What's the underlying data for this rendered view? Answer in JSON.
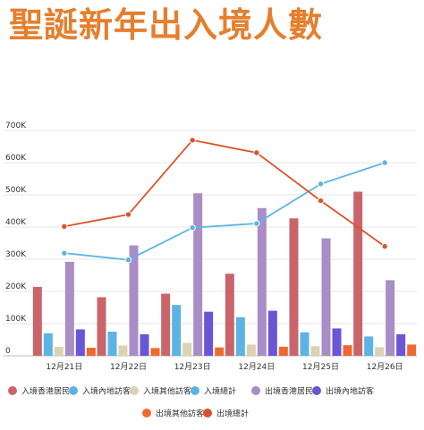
{
  "chart_data": {
    "type": "bar",
    "title": "聖誕新年出入境人數",
    "title_color": "#e57f2e",
    "categories": [
      "12月21日",
      "12月22日",
      "12月23日",
      "12月24日",
      "12月25日",
      "12月26日"
    ],
    "ylim": [
      0,
      700000
    ],
    "yticks": [
      {
        "value": 0,
        "label": "0"
      },
      {
        "value": 100000,
        "label": "100K"
      },
      {
        "value": 200000,
        "label": "200K"
      },
      {
        "value": 300000,
        "label": "300K"
      },
      {
        "value": 400000,
        "label": "400K"
      },
      {
        "value": 500000,
        "label": "500K"
      },
      {
        "value": 600000,
        "label": "600K"
      },
      {
        "value": 700000,
        "label": "700K"
      }
    ],
    "grid": true,
    "legend_position": "bottom",
    "series": [
      {
        "name": "入境香港居民",
        "kind": "bar",
        "color": "#c9656a",
        "values": [
          214000,
          182000,
          193000,
          255000,
          427000,
          510000
        ]
      },
      {
        "name": "入境內地訪客",
        "kind": "bar",
        "color": "#5bb4e5",
        "values": [
          70000,
          75000,
          158000,
          120000,
          73000,
          60000
        ]
      },
      {
        "name": "入境其他訪客",
        "kind": "bar",
        "color": "#d9d3b4",
        "values": [
          28000,
          32000,
          40000,
          35000,
          30000,
          27000
        ]
      },
      {
        "name": "入境總計",
        "kind": "line",
        "color": "#5bb4e5",
        "values": [
          319000,
          298000,
          398000,
          411000,
          534000,
          600000
        ]
      },
      {
        "name": "出境香港居民",
        "kind": "bar",
        "color": "#a98dc7",
        "values": [
          292000,
          343000,
          505000,
          459000,
          365000,
          235000
        ]
      },
      {
        "name": "出境內地訪客",
        "kind": "bar",
        "color": "#6a55d6",
        "values": [
          82000,
          67000,
          137000,
          140000,
          85000,
          67000
        ]
      },
      {
        "name": "出境其他訪客",
        "kind": "bar",
        "color": "#ef6a2f",
        "values": [
          25000,
          24000,
          26000,
          28000,
          33000,
          35000
        ]
      },
      {
        "name": "出境總計",
        "kind": "line",
        "color": "#d9532a",
        "values": [
          402000,
          439000,
          670000,
          631000,
          482000,
          340000
        ]
      }
    ]
  }
}
